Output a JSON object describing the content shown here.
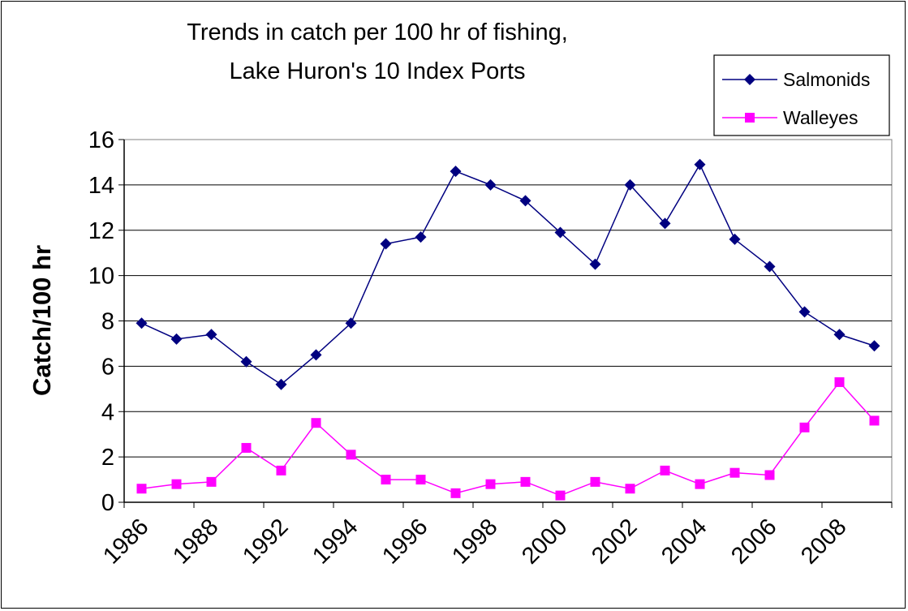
{
  "chart_data": {
    "type": "line",
    "title_lines": [
      "Trends in catch per 100 hr of fishing,",
      "Lake Huron's 10 Index Ports"
    ],
    "xlabel": "",
    "ylabel": "Catch/100 hr",
    "ylim": [
      0,
      16
    ],
    "yticks": [
      0,
      2,
      4,
      6,
      8,
      10,
      12,
      14,
      16
    ],
    "x_tick_labels": [
      "1986",
      "1988",
      "1992",
      "1994",
      "1996",
      "1998",
      "2000",
      "2002",
      "2004",
      "2006",
      "2008"
    ],
    "grid": "horizontal",
    "legend_position": "top-right",
    "series": [
      {
        "name": "Salmonids",
        "color": "#000080",
        "marker": "diamond",
        "values": [
          7.9,
          7.2,
          7.4,
          6.2,
          5.2,
          6.5,
          7.9,
          11.4,
          11.7,
          14.6,
          14.0,
          13.3,
          11.9,
          10.5,
          14.0,
          12.3,
          14.9,
          11.6,
          10.4,
          8.4,
          7.4,
          6.9
        ]
      },
      {
        "name": "Walleyes",
        "color": "#ff00ff",
        "marker": "square",
        "values": [
          0.6,
          0.8,
          0.9,
          2.4,
          1.4,
          3.5,
          2.1,
          1.0,
          1.0,
          0.4,
          0.8,
          0.9,
          0.3,
          0.9,
          0.6,
          1.4,
          0.8,
          1.3,
          1.2,
          3.3,
          5.3,
          3.6
        ]
      }
    ]
  }
}
